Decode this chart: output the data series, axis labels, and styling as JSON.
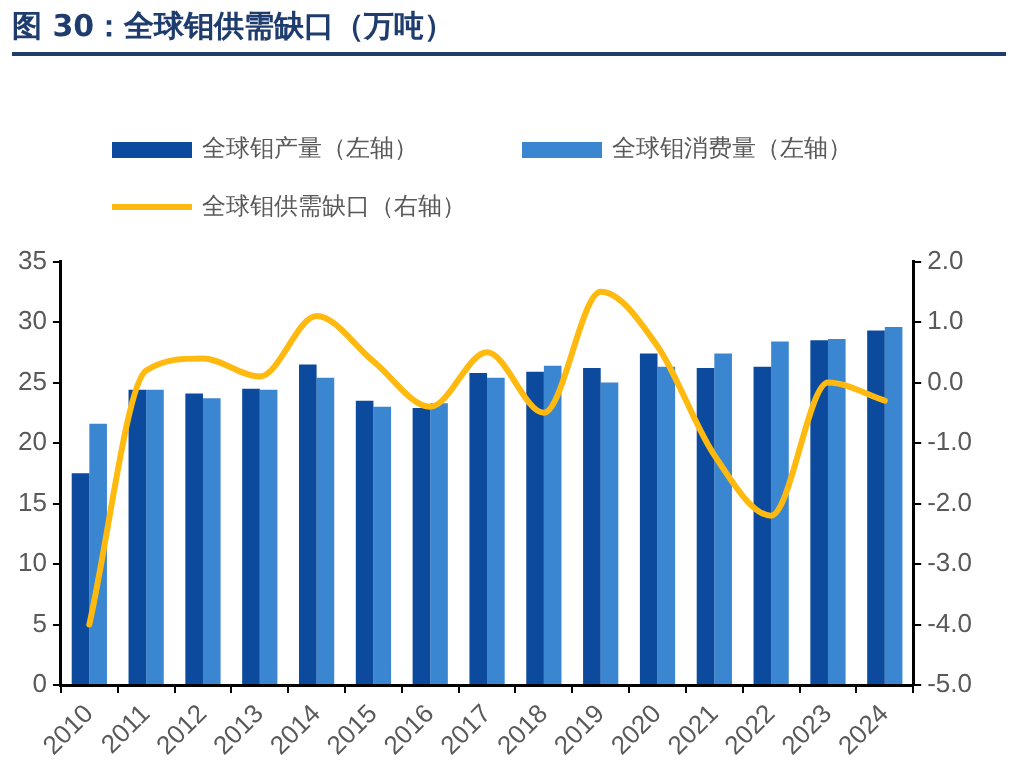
{
  "chart_data": {
    "type": "bar",
    "title": "图 30：全球钼供需缺口（万吨）",
    "categories": [
      "2010",
      "2011",
      "2012",
      "2013",
      "2014",
      "2015",
      "2016",
      "2017",
      "2018",
      "2019",
      "2020",
      "2021",
      "2022",
      "2023",
      "2024"
    ],
    "series": [
      {
        "name": "全球钼产量（左轴）",
        "color": "#0b4a9c",
        "values": [
          17.5,
          24.4,
          24.1,
          24.5,
          26.5,
          23.5,
          22.9,
          25.8,
          25.9,
          26.2,
          27.4,
          26.2,
          26.3,
          28.5,
          29.3
        ]
      },
      {
        "name": "全球钼消费量（左轴）",
        "color": "#3a86d0",
        "values": [
          21.6,
          24.4,
          23.7,
          24.4,
          25.4,
          23.0,
          23.3,
          25.4,
          26.4,
          25.0,
          26.3,
          27.4,
          28.4,
          28.6,
          29.6
        ]
      },
      {
        "name": "全球钼供需缺口（右轴）",
        "type": "line",
        "axis": "y2",
        "color": "#ffb90f",
        "values": [
          -4.0,
          0.2,
          0.4,
          0.1,
          1.1,
          0.35,
          -0.4,
          0.5,
          -0.5,
          1.5,
          0.6,
          -1.2,
          -2.2,
          0.0,
          -0.3
        ]
      }
    ],
    "ylim": [
      0,
      35
    ],
    "yticks": [
      0,
      5,
      10,
      15,
      20,
      25,
      30,
      35
    ],
    "y2lim": [
      -5,
      2
    ],
    "y2ticks": [
      {
        "value": -5,
        "label": "-5.0"
      },
      {
        "value": -4,
        "label": "-4.0"
      },
      {
        "value": -3,
        "label": "-3.0"
      },
      {
        "value": -2,
        "label": "-2.0"
      },
      {
        "value": -1,
        "label": "-1.0"
      },
      {
        "value": 0,
        "label": "0.0"
      },
      {
        "value": 1,
        "label": "1.0"
      },
      {
        "value": 2,
        "label": "2.0"
      }
    ],
    "grid": false,
    "legend": "top",
    "marker": "none"
  }
}
